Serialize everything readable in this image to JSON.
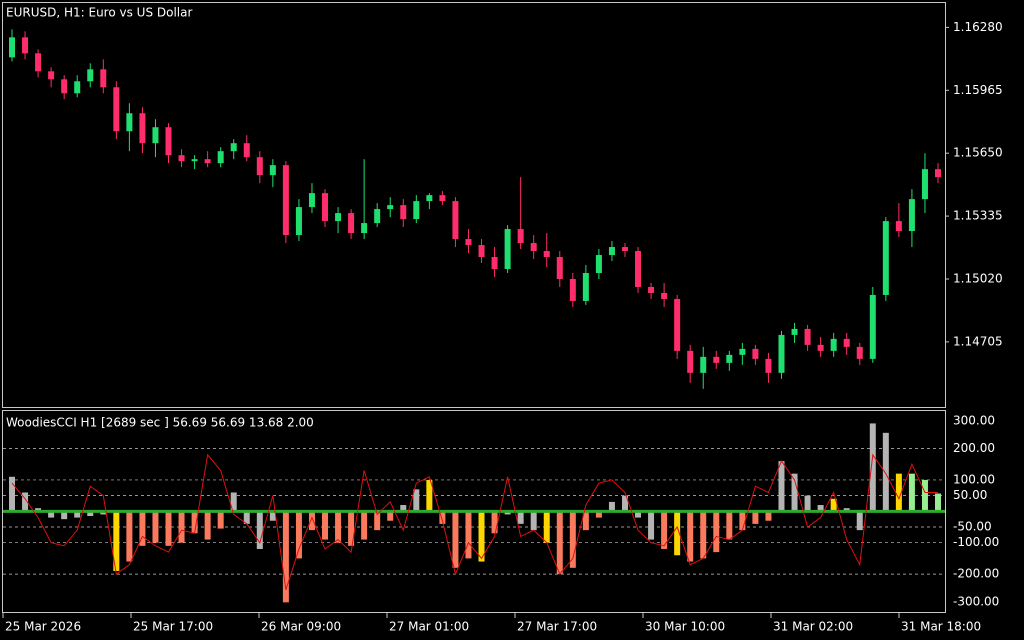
{
  "chart_data": [
    {
      "type": "candlestick",
      "title": "EURUSD, H1:  Euro vs US Dollar",
      "up_color": "#1fe06e",
      "down_color": "#ff2d6b",
      "ylim": [
        1.14394,
        1.16377
      ],
      "yticks": [
        {
          "value": 1.1628,
          "label": "1.16280"
        },
        {
          "value": 1.15965,
          "label": "1.15965"
        },
        {
          "value": 1.1565,
          "label": "1.15650"
        },
        {
          "value": 1.15335,
          "label": "1.15335"
        },
        {
          "value": 1.1502,
          "label": "1.15020"
        },
        {
          "value": 1.14705,
          "label": "1.14705"
        }
      ],
      "ohlc": [
        [
          1.1613,
          1.1627,
          1.1611,
          1.1623
        ],
        [
          1.1623,
          1.1626,
          1.1612,
          1.1615
        ],
        [
          1.1615,
          1.1617,
          1.1603,
          1.1606
        ],
        [
          1.1606,
          1.1608,
          1.1598,
          1.1602
        ],
        [
          1.1602,
          1.1604,
          1.1592,
          1.1595
        ],
        [
          1.1595,
          1.1604,
          1.1593,
          1.1601
        ],
        [
          1.1601,
          1.161,
          1.1598,
          1.1607
        ],
        [
          1.1607,
          1.1612,
          1.1595,
          1.1598
        ],
        [
          1.1598,
          1.1601,
          1.1572,
          1.1576
        ],
        [
          1.1576,
          1.159,
          1.1566,
          1.1585
        ],
        [
          1.1585,
          1.1588,
          1.1565,
          1.157
        ],
        [
          1.157,
          1.1582,
          1.1563,
          1.1578
        ],
        [
          1.1578,
          1.158,
          1.156,
          1.1564
        ],
        [
          1.1564,
          1.1567,
          1.1558,
          1.1561
        ],
        [
          1.1561,
          1.1564,
          1.1557,
          1.1562
        ],
        [
          1.1562,
          1.1566,
          1.1558,
          1.156
        ],
        [
          1.156,
          1.1568,
          1.1558,
          1.1566
        ],
        [
          1.1566,
          1.1572,
          1.1562,
          1.157
        ],
        [
          1.157,
          1.1574,
          1.1561,
          1.1563
        ],
        [
          1.1563,
          1.1566,
          1.155,
          1.1554
        ],
        [
          1.1554,
          1.1562,
          1.1548,
          1.1559
        ],
        [
          1.1559,
          1.1561,
          1.152,
          1.1524
        ],
        [
          1.1524,
          1.1542,
          1.1521,
          1.1538
        ],
        [
          1.1538,
          1.155,
          1.1535,
          1.1545
        ],
        [
          1.1545,
          1.1547,
          1.1528,
          1.1531
        ],
        [
          1.1531,
          1.1538,
          1.1525,
          1.1535
        ],
        [
          1.1535,
          1.1537,
          1.1522,
          1.1525
        ],
        [
          1.1525,
          1.1562,
          1.1522,
          1.153
        ],
        [
          1.153,
          1.154,
          1.1528,
          1.1537
        ],
        [
          1.1537,
          1.1543,
          1.1533,
          1.1539
        ],
        [
          1.1539,
          1.1542,
          1.1528,
          1.1532
        ],
        [
          1.1532,
          1.1544,
          1.153,
          1.1541
        ],
        [
          1.1541,
          1.1545,
          1.1537,
          1.1544
        ],
        [
          1.1544,
          1.1546,
          1.1539,
          1.1541
        ],
        [
          1.1541,
          1.1543,
          1.1518,
          1.1522
        ],
        [
          1.1522,
          1.1527,
          1.1515,
          1.1519
        ],
        [
          1.1519,
          1.1522,
          1.151,
          1.1513
        ],
        [
          1.1513,
          1.1518,
          1.1503,
          1.1507
        ],
        [
          1.1507,
          1.1529,
          1.1505,
          1.1527
        ],
        [
          1.1527,
          1.1553,
          1.1517,
          1.152
        ],
        [
          1.152,
          1.1524,
          1.1512,
          1.1516
        ],
        [
          1.1516,
          1.1525,
          1.1508,
          1.1513
        ],
        [
          1.1513,
          1.1516,
          1.1498,
          1.1502
        ],
        [
          1.1502,
          1.1505,
          1.1488,
          1.1491
        ],
        [
          1.1491,
          1.1509,
          1.1489,
          1.1505
        ],
        [
          1.1505,
          1.1517,
          1.1502,
          1.1514
        ],
        [
          1.1514,
          1.1521,
          1.1511,
          1.1518
        ],
        [
          1.1518,
          1.152,
          1.1513,
          1.1516
        ],
        [
          1.1516,
          1.1518,
          1.1495,
          1.1498
        ],
        [
          1.1498,
          1.15,
          1.1492,
          1.1495
        ],
        [
          1.1495,
          1.15,
          1.1488,
          1.1492
        ],
        [
          1.1492,
          1.1494,
          1.1462,
          1.1466
        ],
        [
          1.1466,
          1.1469,
          1.145,
          1.1455
        ],
        [
          1.1455,
          1.1468,
          1.1447,
          1.1463
        ],
        [
          1.1463,
          1.1466,
          1.1457,
          1.146
        ],
        [
          1.146,
          1.1466,
          1.1456,
          1.1464
        ],
        [
          1.1464,
          1.147,
          1.1459,
          1.1467
        ],
        [
          1.1467,
          1.1469,
          1.1459,
          1.1462
        ],
        [
          1.1462,
          1.1465,
          1.145,
          1.1455
        ],
        [
          1.1455,
          1.1476,
          1.1452,
          1.1474
        ],
        [
          1.1474,
          1.148,
          1.147,
          1.1477
        ],
        [
          1.1477,
          1.1479,
          1.1466,
          1.1469
        ],
        [
          1.1469,
          1.1473,
          1.1463,
          1.1466
        ],
        [
          1.1466,
          1.1475,
          1.1463,
          1.1472
        ],
        [
          1.1472,
          1.1475,
          1.1464,
          1.1468
        ],
        [
          1.1468,
          1.147,
          1.1459,
          1.1462
        ],
        [
          1.1462,
          1.1498,
          1.146,
          1.1494
        ],
        [
          1.1494,
          1.1533,
          1.1491,
          1.1531
        ],
        [
          1.1531,
          1.154,
          1.1523,
          1.1526
        ],
        [
          1.1526,
          1.1547,
          1.1518,
          1.1542
        ],
        [
          1.1542,
          1.1565,
          1.1535,
          1.1557
        ],
        [
          1.1557,
          1.156,
          1.155,
          1.1553
        ]
      ]
    },
    {
      "type": "bar",
      "title": "WoodiesCCI H1 [2689 sec ] 56.69 56.69 13.68 2.00",
      "zero_color": "#2ea82e",
      "grid_color": "#c8c8c8",
      "ylim": [
        -308,
        310
      ],
      "yticks": [
        {
          "value": 300,
          "label": "300.00"
        },
        {
          "value": 200,
          "label": "200.00"
        },
        {
          "value": 100,
          "label": "100.00"
        },
        {
          "value": 50,
          "label": "50.00"
        },
        {
          "value": -50,
          "label": "-50.00"
        },
        {
          "value": -100,
          "label": "-100.00"
        },
        {
          "value": -200,
          "label": "-200.00"
        },
        {
          "value": -300,
          "label": "-300.00"
        }
      ],
      "values": [
        110,
        60,
        10,
        -20,
        -25,
        -20,
        -15,
        -10,
        -190,
        -160,
        -110,
        -100,
        -110,
        -100,
        -70,
        -90,
        -55,
        60,
        -40,
        -120,
        -30,
        -290,
        -150,
        -60,
        -90,
        -100,
        -110,
        -90,
        -60,
        -30,
        20,
        70,
        100,
        -40,
        -180,
        -150,
        -160,
        -70,
        -10,
        -40,
        -60,
        -100,
        -200,
        -180,
        -60,
        -20,
        30,
        50,
        -20,
        -90,
        -120,
        -140,
        -160,
        -150,
        -130,
        -90,
        -60,
        -40,
        -30,
        160,
        120,
        50,
        20,
        40,
        10,
        -60,
        280,
        250,
        120,
        120,
        100,
        56.69
      ],
      "colors": [
        "#b4b4b4",
        "#b4b4b4",
        "#b4b4b4",
        "#b4b4b4",
        "#b4b4b4",
        "#b4b4b4",
        "#b4b4b4",
        "#b4b4b4",
        "#ffd700",
        "#fa7a5e",
        "#fa7a5e",
        "#fa7a5e",
        "#fa7a5e",
        "#fa7a5e",
        "#fa7a5e",
        "#fa7a5e",
        "#fa7a5e",
        "#b4b4b4",
        "#b4b4b4",
        "#b4b4b4",
        "#b4b4b4",
        "#fa7a5e",
        "#fa7a5e",
        "#fa7a5e",
        "#fa7a5e",
        "#fa7a5e",
        "#fa7a5e",
        "#fa7a5e",
        "#fa7a5e",
        "#fa7a5e",
        "#b4b4b4",
        "#b4b4b4",
        "#ffd700",
        "#fa7a5e",
        "#fa7a5e",
        "#fa7a5e",
        "#ffd700",
        "#fa7a5e",
        "#b4b4b4",
        "#b4b4b4",
        "#b4b4b4",
        "#ffd700",
        "#fa7a5e",
        "#fa7a5e",
        "#fa7a5e",
        "#fa7a5e",
        "#b4b4b4",
        "#b4b4b4",
        "#b4b4b4",
        "#b4b4b4",
        "#fa7a5e",
        "#ffd700",
        "#fa7a5e",
        "#fa7a5e",
        "#fa7a5e",
        "#fa7a5e",
        "#fa7a5e",
        "#fa7a5e",
        "#fa7a5e",
        "#b4b4b4",
        "#b4b4b4",
        "#b4b4b4",
        "#b4b4b4",
        "#ffd700",
        "#b4b4b4",
        "#b4b4b4",
        "#b4b4b4",
        "#b4b4b4",
        "#ffd700",
        "#98ee90",
        "#98ee90",
        "#98ee90"
      ],
      "line": {
        "color": "#e01010",
        "values": [
          90,
          40,
          -20,
          -100,
          -110,
          -60,
          80,
          50,
          -200,
          -170,
          -80,
          -110,
          -130,
          -60,
          -70,
          180,
          130,
          -10,
          -40,
          -100,
          50,
          -250,
          -120,
          -20,
          -120,
          -90,
          -130,
          130,
          -10,
          30,
          -60,
          90,
          110,
          -30,
          -200,
          -100,
          -150,
          -80,
          110,
          -80,
          -60,
          -100,
          -200,
          -150,
          20,
          90,
          100,
          60,
          -60,
          -100,
          -110,
          -50,
          -170,
          -150,
          -80,
          -90,
          -60,
          80,
          60,
          160,
          100,
          -50,
          -20,
          60,
          -90,
          -170,
          180,
          120,
          40,
          150,
          60,
          60
        ]
      }
    }
  ],
  "time_axis": {
    "labels": [
      "25 Mar 2026",
      "25 Mar 17:00",
      "26 Mar 09:00",
      "27 Mar 01:00",
      "27 Mar 17:00",
      "30 Mar 10:00",
      "31 Mar 02:00",
      "31 Mar 18:00"
    ]
  }
}
